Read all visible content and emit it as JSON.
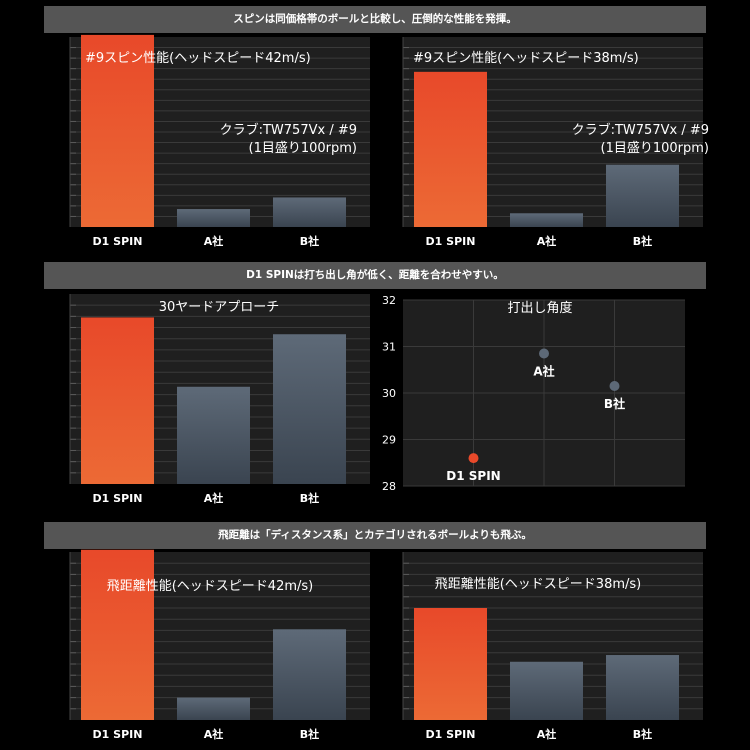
{
  "banners": {
    "spin": "スピンは同価格帯のボールと比較し、圧倒的な性能を発揮。",
    "launch": "D1 SPINは打ち出し角が低く、距離を合わせやすい。",
    "distance": "飛距離は「ディスタンス系」とカテゴリされるボールよりも飛ぶ。"
  },
  "colors": {
    "background": "#000000",
    "panel": "#1f1f1f",
    "grid": "#3a3a3a",
    "banner": "#555555",
    "d1_bar_top": "#e8492a",
    "d1_bar_bottom": "#ec6a35",
    "other_bar_top": "#5e6a78",
    "other_bar_bottom": "#3a4450",
    "d1_marker": "#e8492a",
    "other_marker": "#5d6977"
  },
  "chart_data": [
    {
      "id": "spin42",
      "type": "bar",
      "title": "#9スピン性能(ヘッドスピード42m/s)",
      "annotation": [
        "クラブ:TW757Vx / #9",
        "(1目盛り100rpm)"
      ],
      "categories": [
        "D1 SPIN",
        "A社",
        "B社"
      ],
      "values": [
        18.2,
        1.7,
        2.8
      ],
      "ylim": [
        0,
        18
      ],
      "grid_step": 1,
      "ylabel": "",
      "xlabel": ""
    },
    {
      "id": "spin38",
      "type": "bar",
      "title": "#9スピン性能(ヘッドスピード38m/s)",
      "annotation": [
        "クラブ:TW757Vx / #9",
        "(1目盛り100rpm)"
      ],
      "categories": [
        "D1 SPIN",
        "A社",
        "B社"
      ],
      "values": [
        14.7,
        1.3,
        5.9
      ],
      "ylim": [
        0,
        18
      ],
      "grid_step": 1,
      "ylabel": "",
      "xlabel": ""
    },
    {
      "id": "approach30",
      "type": "bar",
      "title": "30ヤードアプローチ",
      "annotation": [],
      "categories": [
        "D1 SPIN",
        "A社",
        "B社"
      ],
      "values": [
        14.9,
        8.7,
        13.4
      ],
      "ylim": [
        0,
        17
      ],
      "grid_step": 1,
      "ylabel": "",
      "xlabel": ""
    },
    {
      "id": "launch",
      "type": "scatter",
      "title": "打出し角度",
      "points": [
        {
          "label": "D1 SPIN",
          "x": 1,
          "y": 28.6
        },
        {
          "label": "A社",
          "x": 2,
          "y": 30.85
        },
        {
          "label": "B社",
          "x": 3,
          "y": 30.15
        }
      ],
      "xlim": [
        0,
        4
      ],
      "ylim": [
        28,
        32
      ],
      "yticks": [
        "32",
        "31",
        "30",
        "29",
        "28"
      ]
    },
    {
      "id": "dist42",
      "type": "bar",
      "title": "飛距離性能(ヘッドスピード42m/s)",
      "annotation": [],
      "categories": [
        "D1 SPIN",
        "A社",
        "B社"
      ],
      "values": [
        15.2,
        2.0,
        8.1
      ],
      "ylim": [
        0,
        15
      ],
      "grid_step": 1,
      "ylabel": "",
      "xlabel": ""
    },
    {
      "id": "dist38",
      "type": "bar",
      "title": "飛距離性能(ヘッドスピード38m/s)",
      "annotation": [],
      "categories": [
        "D1 SPIN",
        "A社",
        "B社"
      ],
      "values": [
        10.0,
        5.2,
        5.8
      ],
      "ylim": [
        0,
        15
      ],
      "grid_step": 1,
      "ylabel": "",
      "xlabel": ""
    }
  ]
}
